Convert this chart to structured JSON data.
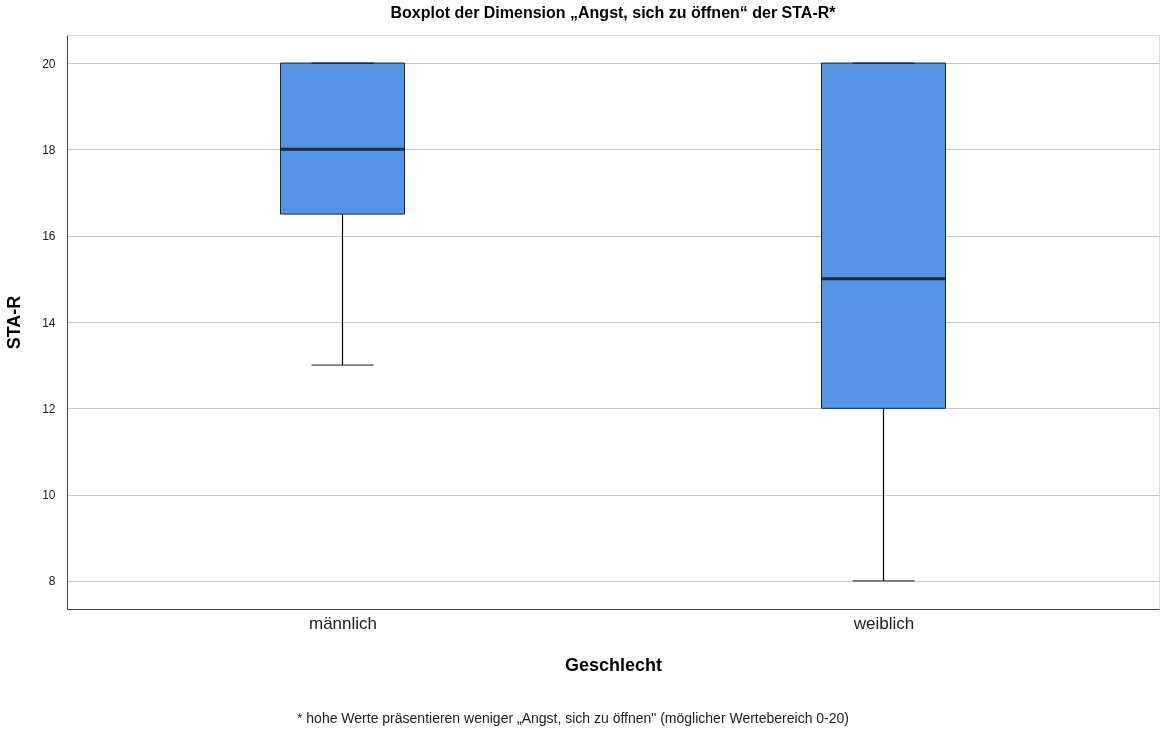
{
  "chart_data": {
    "type": "box",
    "title": "Boxplot der Dimension „Angst, sich zu öffnen“ der STA-R*",
    "xlabel": "Geschlecht",
    "ylabel": "STA-R",
    "categories": [
      "männlich",
      "weiblich"
    ],
    "boxes": [
      {
        "low": 13,
        "q1": 16.5,
        "median": 18,
        "q3": 20,
        "high": 20
      },
      {
        "low": 8,
        "q1": 12,
        "median": 15,
        "q3": 20,
        "high": 20
      }
    ],
    "color": "#5394e4",
    "ylim": [
      7.35,
      20.65
    ],
    "yticks": [
      8,
      10,
      12,
      14,
      16,
      18,
      20
    ],
    "grid": "y",
    "annotations": [
      "* hohe Werte präsentieren weniger „Angst, sich zu öffnen\" (möglicher Wertebereich 0-20)"
    ]
  }
}
